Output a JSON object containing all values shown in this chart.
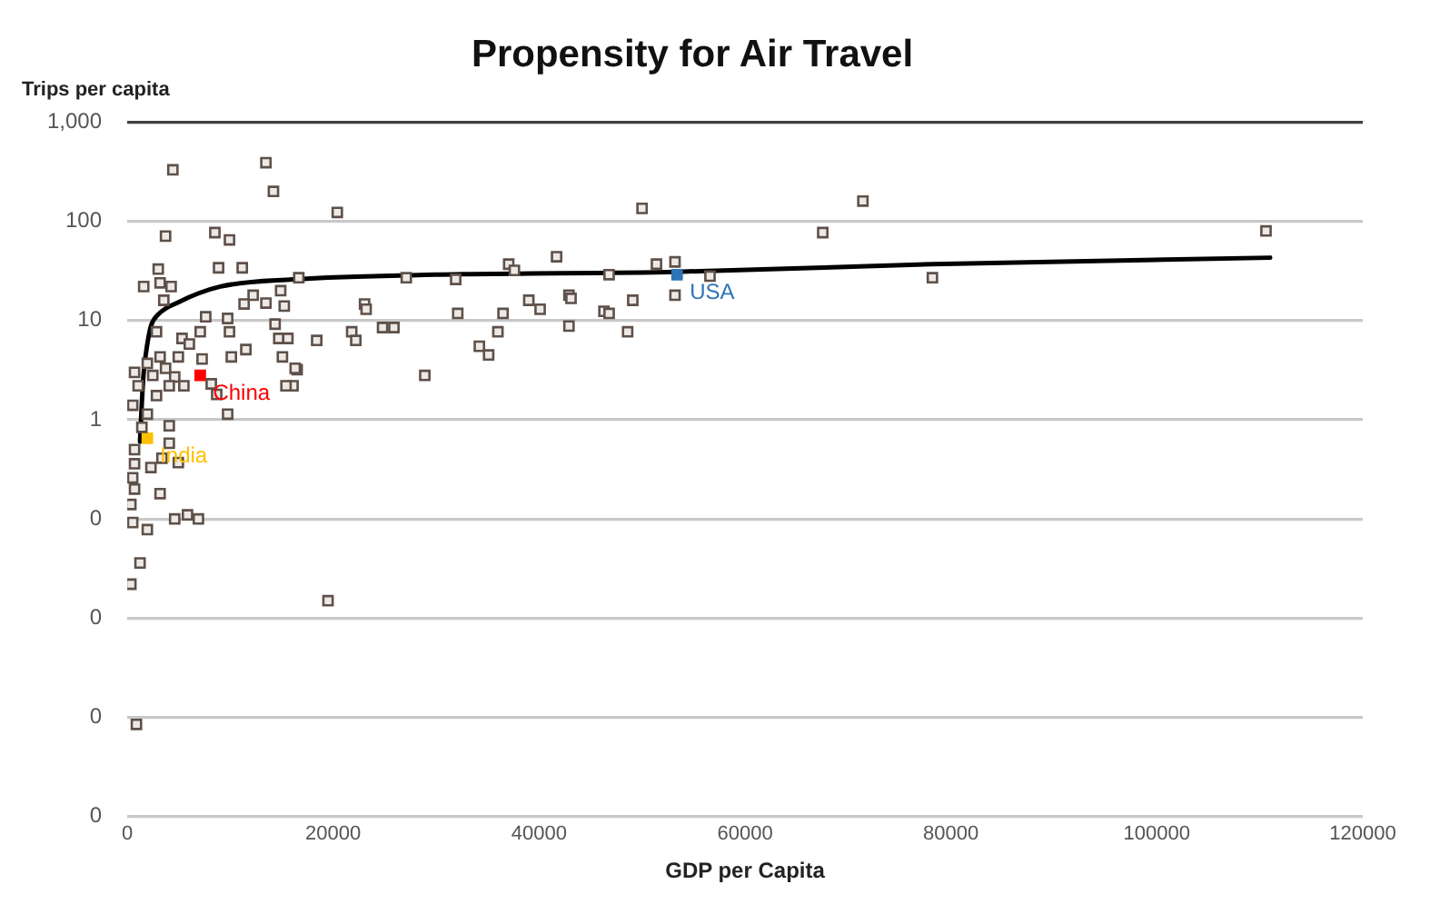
{
  "chart_data": {
    "type": "scatter",
    "title": "Propensity for Air Travel",
    "xlabel": "GDP per Capita",
    "ylabel": "Trips per capita",
    "xlim": [
      0,
      120000
    ],
    "xticks": [
      0,
      20000,
      40000,
      60000,
      80000,
      100000,
      120000
    ],
    "ylim": [
      0.0001,
      1000
    ],
    "yticks": [
      {
        "value": 1000,
        "label": "1,000"
      },
      100,
      10,
      1,
      {
        "value": 0.1,
        "label": "0"
      },
      {
        "value": 0.01,
        "label": "0"
      },
      {
        "value": 0.001,
        "label": "0"
      },
      {
        "value": 0.0001,
        "label": "0"
      }
    ],
    "log": "y",
    "grid": "y",
    "legend": false,
    "marker": "square",
    "series": [
      {
        "color": "#5e5049",
        "x": [
          4430,
          13470,
          14200,
          20400,
          50000,
          71450,
          67550,
          110600,
          78200,
          16660,
          27100,
          31900,
          37050,
          37600,
          41700,
          46800,
          51400,
          53200,
          56600,
          23050,
          23200,
          32100,
          36500,
          39000,
          40100,
          42900,
          43100,
          46300,
          46800,
          49100,
          53200,
          18400,
          21800,
          22200,
          24800,
          25900,
          34200,
          35100,
          36000,
          42900,
          48600,
          16500,
          28900,
          16100,
          3720,
          8510,
          9930,
          8870,
          11170,
          3010,
          1600,
          3190,
          4260,
          3550,
          14900,
          13470,
          12230,
          11350,
          15250,
          7620,
          9750,
          14360,
          2840,
          5320,
          7090,
          9930,
          14720,
          15600,
          11520,
          10110,
          15070,
          16310,
          15420,
          9750,
          6030,
          7270,
          4960,
          3190,
          1950,
          710,
          2480,
          3720,
          4610,
          5500,
          4080,
          2840,
          1060,
          530,
          1950,
          1420,
          4080,
          8160,
          8690,
          710,
          4080,
          3370,
          4960,
          2300,
          710,
          530,
          710,
          3190,
          350,
          530,
          1950,
          4610,
          5850,
          6910,
          1240,
          350,
          19500,
          890
        ],
        "values": [
          330,
          390,
          200,
          123,
          135,
          160,
          77,
          80,
          27,
          27,
          27,
          26,
          37,
          32,
          44,
          29,
          37,
          39,
          28,
          14.7,
          13,
          11.8,
          11.8,
          16,
          13,
          18,
          16.7,
          12.4,
          11.8,
          16,
          18,
          6.3,
          7.7,
          6.3,
          8.5,
          8.5,
          5.5,
          4.5,
          7.7,
          8.8,
          7.7,
          3.2,
          2.8,
          2.2,
          71,
          77,
          65,
          34,
          34,
          33,
          22,
          24,
          22,
          16,
          20,
          15,
          18,
          14.7,
          14,
          10.9,
          10.5,
          9.2,
          7.7,
          6.6,
          7.7,
          7.7,
          6.6,
          6.6,
          5.1,
          4.3,
          4.3,
          3.3,
          2.2,
          1.14,
          5.8,
          4.1,
          4.3,
          4.3,
          3.7,
          3,
          2.8,
          3.3,
          2.7,
          2.2,
          2.2,
          1.75,
          2.2,
          1.4,
          1.14,
          0.84,
          0.87,
          2.3,
          1.8,
          0.5,
          0.58,
          0.41,
          0.37,
          0.33,
          0.36,
          0.26,
          0.2,
          0.18,
          0.14,
          0.092,
          0.078,
          0.1,
          0.11,
          0.1,
          0.036,
          0.022,
          0.015,
          0.00085
        ]
      },
      {
        "name": "China",
        "color": "#ff0000",
        "x": [
          7090
        ],
        "values": [
          2.8
        ]
      },
      {
        "name": "India",
        "color": "#ffc000",
        "x": [
          1950
        ],
        "values": [
          0.65
        ]
      },
      {
        "name": "USA",
        "color": "#2e75b6",
        "x": [
          53400
        ],
        "values": [
          29
        ]
      },
      {
        "type": "line",
        "color": "#000000",
        "marker": "none",
        "line_style": "solid",
        "x": [
          1240,
          1420,
          1600,
          1950,
          2300,
          3000,
          4960,
          9040,
          16100,
          30000,
          53400,
          78200,
          111000
        ],
        "values": [
          0.6,
          1.5,
          3,
          5.8,
          8.8,
          11.5,
          15.3,
          22,
          26,
          29,
          31,
          37,
          43
        ]
      }
    ]
  }
}
